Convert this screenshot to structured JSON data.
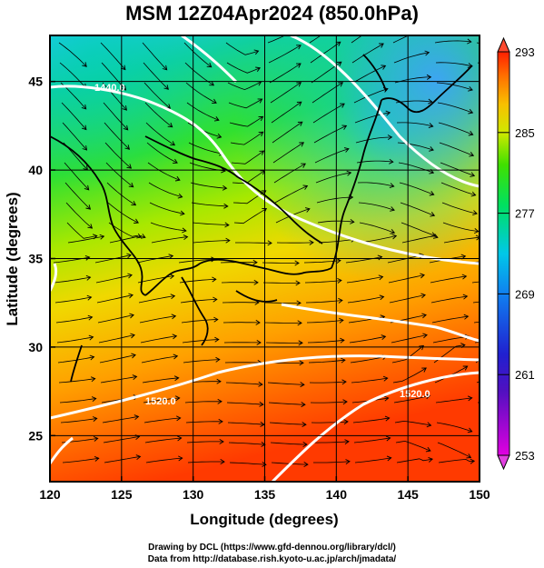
{
  "title": "MSM 12Z04Apr2024 (850.0hPa)",
  "xaxis": {
    "label": "Longitude (degrees)",
    "ticks": [
      "120",
      "125",
      "130",
      "135",
      "140",
      "145",
      "150"
    ],
    "range": [
      120,
      150
    ]
  },
  "yaxis": {
    "label": "Latitude  (degrees)",
    "ticks": [
      "25",
      "30",
      "35",
      "40",
      "45"
    ],
    "range": [
      22.4,
      47.6
    ]
  },
  "colorbar": {
    "ticks": [
      "253",
      "261",
      "269",
      "277",
      "285",
      "293"
    ],
    "range": [
      253,
      293
    ],
    "colors": [
      "#e000e0",
      "#2020d0",
      "#00c8e8",
      "#00e000",
      "#e8e800",
      "#ff2000"
    ]
  },
  "contour_labels": [
    "1440.0",
    "1520.0",
    "1520.0"
  ],
  "credits": {
    "line1": "Drawing by DCL (https://www.gfd-dennou.org/library/dcl/)",
    "line2": "Data from http://database.rish.kyoto-u.ac.jp/arch/jmadata/"
  }
}
